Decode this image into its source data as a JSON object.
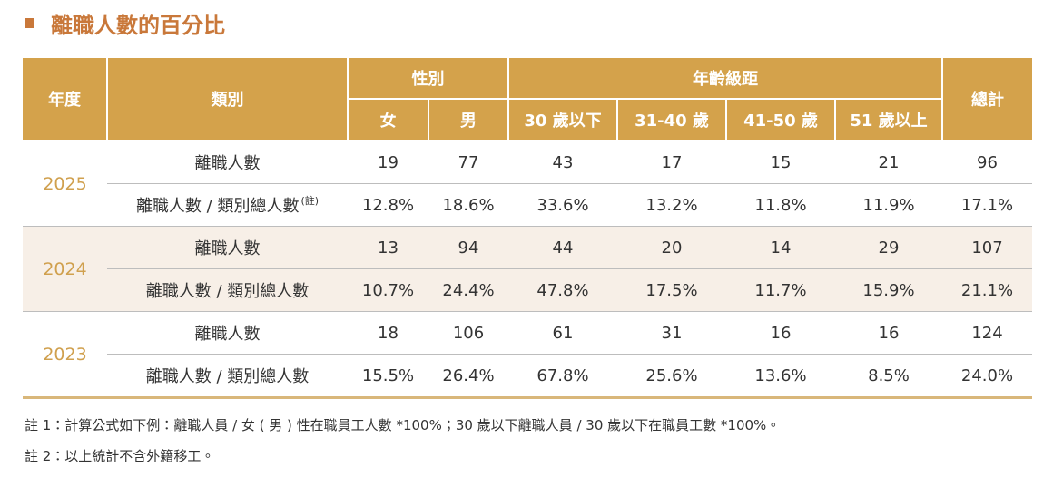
{
  "title": "離職人數的百分比",
  "table": {
    "header": {
      "year": "年度",
      "category": "類別",
      "gender": "性別",
      "age": "年齡級距",
      "total": "總計",
      "gender_columns": [
        "女",
        "男"
      ],
      "age_columns": [
        "30 歲以下",
        "31-40 歲",
        "41-50 歲",
        "51 歲以上"
      ]
    },
    "groups": [
      {
        "year": "2025",
        "rows": [
          {
            "label": "離職人數",
            "cells": [
              "19",
              "77",
              "43",
              "17",
              "15",
              "21",
              "96"
            ]
          },
          {
            "label": "離職人數 / 類別總人數",
            "note": "(註)",
            "cells": [
              "12.8%",
              "18.6%",
              "33.6%",
              "13.2%",
              "11.8%",
              "11.9%",
              "17.1%"
            ]
          }
        ]
      },
      {
        "year": "2024",
        "rows": [
          {
            "label": "離職人數",
            "cells": [
              "13",
              "94",
              "44",
              "20",
              "14",
              "29",
              "107"
            ]
          },
          {
            "label": "離職人數 / 類別總人數",
            "cells": [
              "10.7%",
              "24.4%",
              "47.8%",
              "17.5%",
              "11.7%",
              "15.9%",
              "21.1%"
            ]
          }
        ]
      },
      {
        "year": "2023",
        "rows": [
          {
            "label": "離職人數",
            "cells": [
              "18",
              "106",
              "61",
              "31",
              "16",
              "16",
              "124"
            ]
          },
          {
            "label": "離職人數 / 類別總人數",
            "cells": [
              "15.5%",
              "26.4%",
              "67.8%",
              "25.6%",
              "13.6%",
              "8.5%",
              "24.0%"
            ]
          }
        ]
      }
    ]
  },
  "notes": [
    "註 1：計算公式如下例：離職人員 / 女 ( 男 ) 性在職員工人數 *100%；30 歲以下離職人員 / 30 歲以下在職員工數 *100%。",
    "註 2：以上統計不含外籍移工。"
  ]
}
